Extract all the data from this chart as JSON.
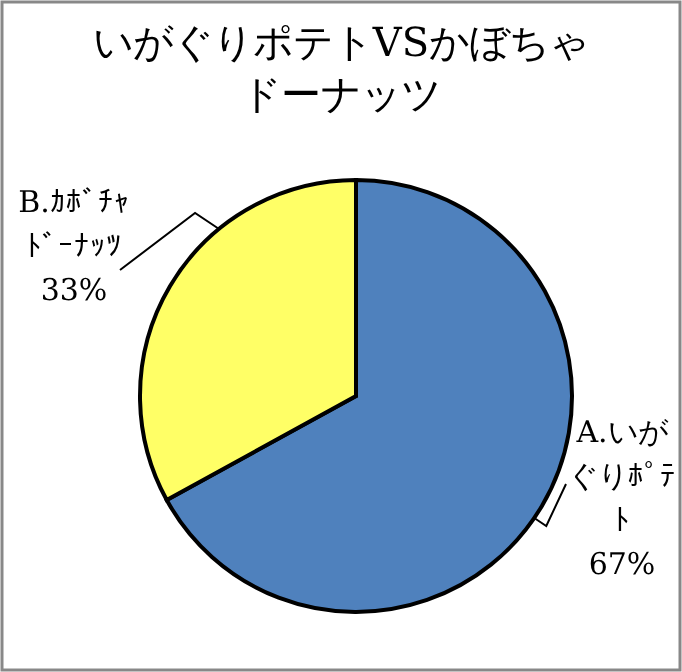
{
  "chart_data": {
    "type": "pie",
    "title": "いがぐりポテトVSかぼちゃドーナッツ",
    "categories": [
      "A.いがぐりﾎﾟﾃﾄ",
      "B.ｶﾎﾞﾁｬﾄﾞｰﾅｯﾂ"
    ],
    "values": [
      67,
      33
    ],
    "colors": [
      "#4f81bd",
      "#ffff66"
    ],
    "value_labels": [
      "67%",
      "33%"
    ]
  }
}
